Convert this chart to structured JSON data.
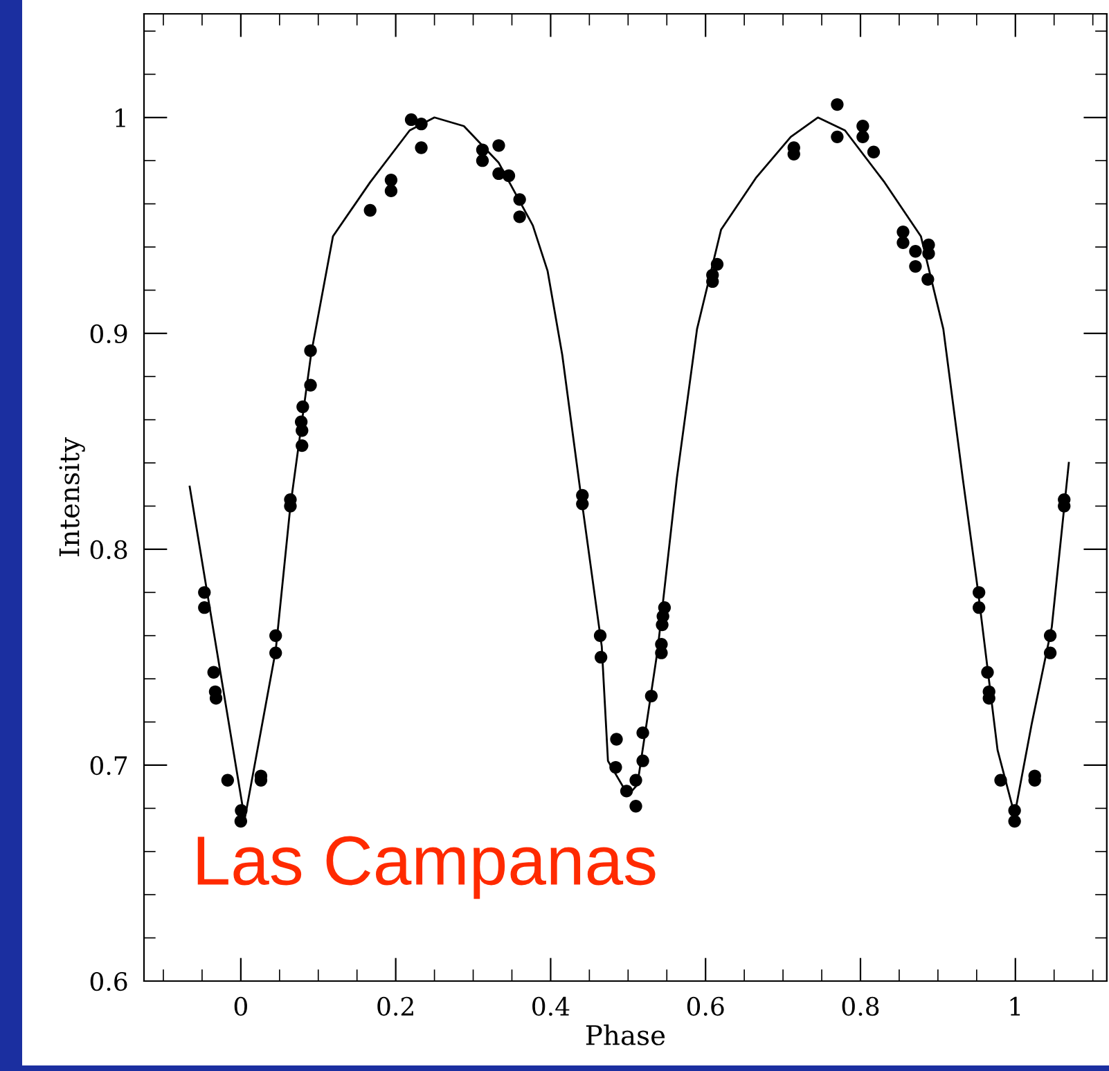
{
  "chart_data": {
    "type": "scatter",
    "xlabel": "Phase",
    "ylabel": "Intensity",
    "xlim": [
      -0.125,
      1.118
    ],
    "ylim": [
      0.6,
      1.048
    ],
    "xticks": [
      {
        "value": -0.1,
        "label": null
      },
      {
        "value": -0.05,
        "label": null
      },
      0,
      {
        "value": 0.05,
        "label": null
      },
      {
        "value": 0.1,
        "label": null
      },
      {
        "value": 0.15,
        "label": null
      },
      0.2,
      {
        "value": 0.25,
        "label": null
      },
      {
        "value": 0.3,
        "label": null
      },
      {
        "value": 0.35,
        "label": null
      },
      0.4,
      {
        "value": 0.45,
        "label": null
      },
      {
        "value": 0.5,
        "label": null
      },
      {
        "value": 0.55,
        "label": null
      },
      0.6,
      {
        "value": 0.65,
        "label": null
      },
      {
        "value": 0.7,
        "label": null
      },
      {
        "value": 0.75,
        "label": null
      },
      0.8,
      {
        "value": 0.85,
        "label": null
      },
      {
        "value": 0.9,
        "label": null
      },
      {
        "value": 0.95,
        "label": null
      },
      1,
      {
        "value": 1.05,
        "label": null
      },
      {
        "value": 1.1,
        "label": null
      }
    ],
    "yticks": [
      0.6,
      {
        "value": 0.62,
        "label": null
      },
      {
        "value": 0.64,
        "label": null
      },
      {
        "value": 0.66,
        "label": null
      },
      {
        "value": 0.68,
        "label": null
      },
      0.7,
      {
        "value": 0.72,
        "label": null
      },
      {
        "value": 0.74,
        "label": null
      },
      {
        "value": 0.76,
        "label": null
      },
      {
        "value": 0.78,
        "label": null
      },
      0.8,
      {
        "value": 0.82,
        "label": null
      },
      {
        "value": 0.84,
        "label": null
      },
      {
        "value": 0.86,
        "label": null
      },
      {
        "value": 0.88,
        "label": null
      },
      0.9,
      {
        "value": 0.92,
        "label": null
      },
      {
        "value": 0.94,
        "label": null
      },
      {
        "value": 0.96,
        "label": null
      },
      {
        "value": 0.98,
        "label": null
      },
      1,
      {
        "value": 1.02,
        "label": null
      },
      {
        "value": 1.04,
        "label": null
      }
    ],
    "grid": false,
    "legend": false,
    "marker": "circle",
    "annotations": [
      "Las Campanas"
    ],
    "series": [
      {
        "color": "#000000",
        "x": [
          -0.047,
          -0.047,
          -0.035,
          -0.033,
          -0.032,
          -0.017,
          0.0005,
          0.0,
          0.026,
          0.026,
          0.045,
          0.045,
          0.064,
          0.064,
          0.079,
          0.079,
          0.078,
          0.08,
          0.09,
          0.09,
          0.167,
          0.194,
          0.194,
          0.22,
          0.233,
          0.233,
          0.312,
          0.312,
          0.333,
          0.333,
          0.346,
          0.36,
          0.36,
          0.441,
          0.441,
          0.464,
          0.465,
          0.485,
          0.484,
          0.498,
          0.51,
          0.51,
          0.519,
          0.519,
          0.53,
          0.543,
          0.543,
          0.544,
          0.545,
          0.547,
          0.609,
          0.609,
          0.615,
          0.714,
          0.714,
          0.77,
          0.77,
          0.803,
          0.803,
          0.817,
          0.855,
          0.855,
          0.871,
          0.871,
          0.888,
          0.888,
          0.887,
          0.953,
          0.953,
          0.964,
          0.966,
          0.966,
          0.981,
          0.999,
          0.999,
          1.025,
          1.025,
          1.045,
          1.045,
          1.063,
          1.063
        ],
        "values": [
          0.78,
          0.773,
          0.743,
          0.734,
          0.731,
          0.693,
          0.679,
          0.674,
          0.695,
          0.693,
          0.76,
          0.752,
          0.823,
          0.82,
          0.848,
          0.855,
          0.859,
          0.866,
          0.876,
          0.892,
          0.957,
          0.971,
          0.966,
          0.999,
          0.997,
          0.986,
          0.985,
          0.98,
          0.987,
          0.974,
          0.973,
          0.962,
          0.954,
          0.825,
          0.821,
          0.76,
          0.75,
          0.712,
          0.699,
          0.688,
          0.681,
          0.693,
          0.702,
          0.715,
          0.732,
          0.752,
          0.756,
          0.765,
          0.769,
          0.773,
          0.924,
          0.927,
          0.932,
          0.986,
          0.983,
          1.006,
          0.991,
          0.996,
          0.991,
          0.984,
          0.947,
          0.942,
          0.938,
          0.931,
          0.941,
          0.937,
          0.925,
          0.78,
          0.773,
          0.743,
          0.734,
          0.731,
          0.693,
          0.679,
          0.674,
          0.695,
          0.693,
          0.76,
          0.752,
          0.823,
          0.82
        ]
      },
      {
        "type": "line",
        "color": "#000000",
        "marker": "none",
        "line_style": "solid",
        "x": [
          -0.066,
          0.005,
          0.045,
          0.064,
          0.091,
          0.119,
          0.167,
          0.218,
          0.25,
          0.288,
          0.333,
          0.377,
          0.396,
          0.415,
          0.438,
          0.466,
          0.474,
          0.5,
          0.512,
          0.538,
          0.563,
          0.589,
          0.62,
          0.665,
          0.71,
          0.745,
          0.78,
          0.831,
          0.878,
          0.907,
          0.932,
          0.952,
          0.977,
          0.999,
          1.021,
          1.047,
          1.069
        ],
        "values": [
          0.829,
          0.675,
          0.753,
          0.82,
          0.891,
          0.945,
          0.97,
          0.994,
          1.0,
          0.996,
          0.979,
          0.95,
          0.929,
          0.89,
          0.828,
          0.755,
          0.702,
          0.686,
          0.691,
          0.753,
          0.833,
          0.902,
          0.948,
          0.972,
          0.991,
          1.0,
          0.994,
          0.97,
          0.945,
          0.902,
          0.833,
          0.78,
          0.707,
          0.677,
          0.719,
          0.764,
          0.84
        ]
      }
    ]
  }
}
